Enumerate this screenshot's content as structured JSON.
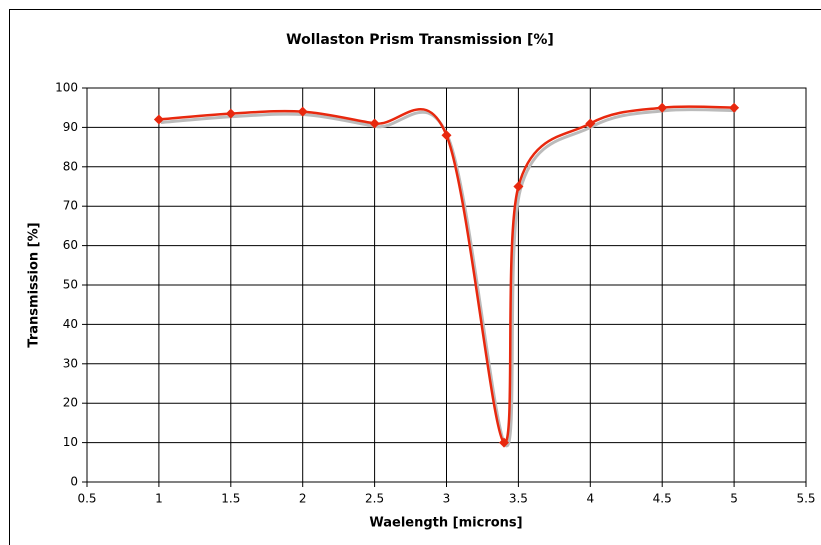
{
  "chart_data": {
    "type": "line",
    "title": "Wollaston Prism Transmission [%]",
    "x_label": "Waelength [microns]",
    "y_label": "Transmission [%]",
    "x": [
      1,
      1.5,
      2,
      2.5,
      3,
      3.4,
      3.5,
      4,
      4.5,
      5
    ],
    "series": [
      {
        "name": "Transmission",
        "color": "#e8280e",
        "values": [
          92,
          93.5,
          94,
          91,
          88,
          10,
          75,
          91,
          95,
          95
        ]
      }
    ],
    "xlim": [
      0.5,
      5.5
    ],
    "xticks": [
      0.5,
      1,
      1.5,
      2,
      2.5,
      3,
      3.5,
      4,
      4.5,
      5,
      5.5
    ],
    "ylim": [
      0,
      100
    ],
    "yticks": [
      0,
      10,
      20,
      30,
      40,
      50,
      60,
      70,
      80,
      90,
      100
    ],
    "grid": true,
    "smooth": true
  }
}
